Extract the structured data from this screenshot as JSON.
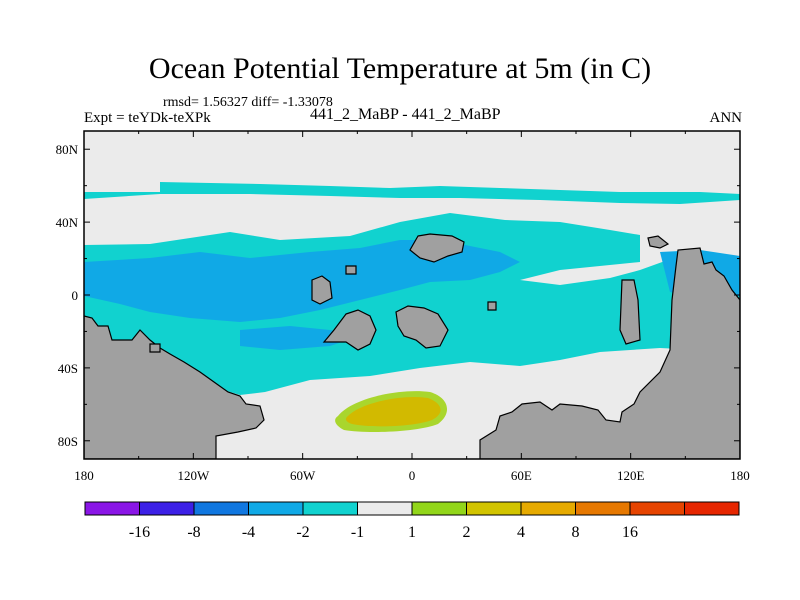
{
  "title": "Ocean Potential Temperature at 5m (in C)",
  "stats": "rmsd= 1.56327  diff= -1.33078",
  "expt": "Expt = teYDk-teXPk",
  "subtitle": "441_2_MaBP - 441_2_MaBP",
  "season": "ANN",
  "colors": {
    "land": "#a0a0a0",
    "neutral": "#ebebeb",
    "cyan": "#11d2cf",
    "blue_mid": "#10a9e6",
    "olive": "#d2ba00",
    "yellow_green": "#a9d62d"
  },
  "chart_data": {
    "type": "heatmap",
    "projection": "cylindrical-equidistant",
    "xlim": [
      -180,
      180
    ],
    "ylim": [
      -90,
      90
    ],
    "x_ticks": [
      {
        "value": -180,
        "label": "180"
      },
      {
        "value": -120,
        "label": "120W"
      },
      {
        "value": -60,
        "label": "60W"
      },
      {
        "value": 0,
        "label": "0"
      },
      {
        "value": 60,
        "label": "60E"
      },
      {
        "value": 120,
        "label": "120E"
      },
      {
        "value": 180,
        "label": "180"
      }
    ],
    "y_ticks": [
      {
        "value": 80,
        "label": "80N"
      },
      {
        "value": 40,
        "label": "40N"
      },
      {
        "value": 0,
        "label": "0"
      },
      {
        "value": -40,
        "label": "40S"
      },
      {
        "value": -80,
        "label": "80S"
      }
    ],
    "colorbar": {
      "colors": [
        "#8a16e6",
        "#3c20e6",
        "#1077e0",
        "#10a9e6",
        "#11d2cf",
        "#ebebeb",
        "#92d61a",
        "#d2c400",
        "#e6aa00",
        "#e67800",
        "#e64400",
        "#e62600"
      ],
      "labels": [
        "-16",
        "-8",
        "-4",
        "-2",
        "-1",
        "1",
        "2",
        "4",
        "8",
        "16"
      ]
    }
  }
}
